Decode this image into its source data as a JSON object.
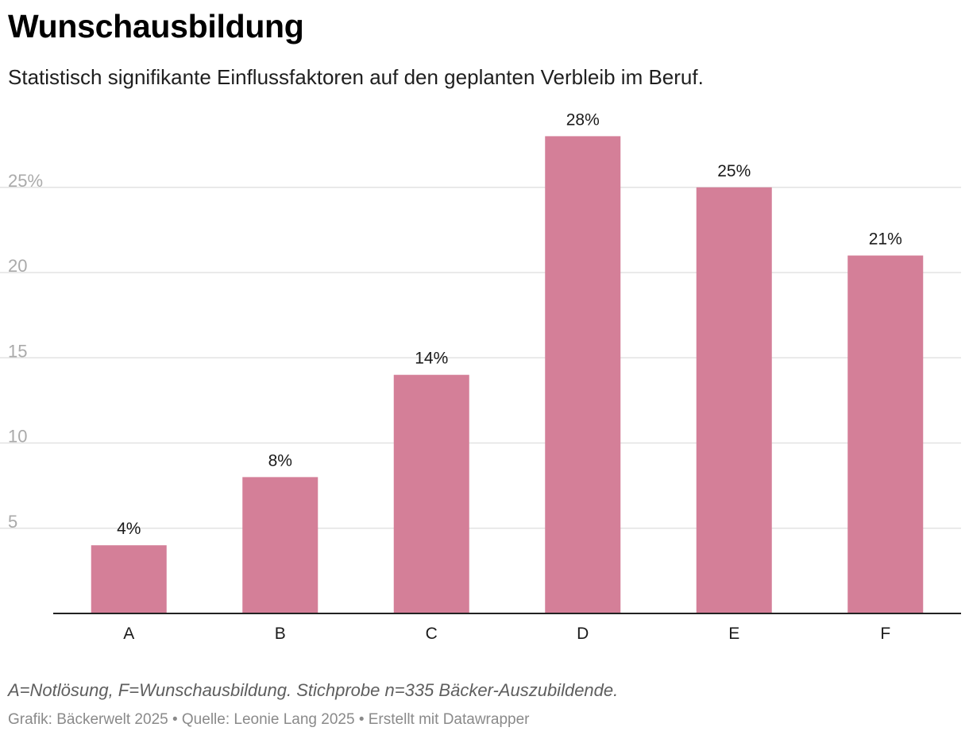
{
  "header": {
    "title": "Wunschausbildung",
    "subtitle": "Statistisch signifikante Einflussfaktoren auf den geplanten Verbleib im Beruf."
  },
  "footer": {
    "notes": "A=Notlösung, F=Wunschausbildung. Stichprobe n=335 Bäcker-Auszubildende.",
    "byline": "Grafik: Bäckerwelt 2025 • Quelle: Leonie Lang 2025 • Erstellt mit Datawrapper"
  },
  "colors": {
    "bar": "#d47f98",
    "grid": "#e3e3e3",
    "tick_label": "#aaaaaa",
    "axis": "#222222"
  },
  "chart_data": {
    "type": "bar",
    "title": "Wunschausbildung",
    "subtitle": "Statistisch signifikante Einflussfaktoren auf den geplanten Verbleib im Beruf.",
    "xlabel": "",
    "ylabel": "",
    "categories": [
      "A",
      "B",
      "C",
      "D",
      "E",
      "F"
    ],
    "values": [
      4,
      8,
      14,
      28,
      25,
      21
    ],
    "value_labels": [
      "4%",
      "8%",
      "14%",
      "28%",
      "25%",
      "21%"
    ],
    "ylim": [
      0,
      28
    ],
    "yticks": [
      5,
      10,
      15,
      20,
      25
    ],
    "ytick_labels": [
      "5",
      "10",
      "15",
      "20",
      "25%"
    ],
    "grid": true,
    "legend": "none"
  }
}
